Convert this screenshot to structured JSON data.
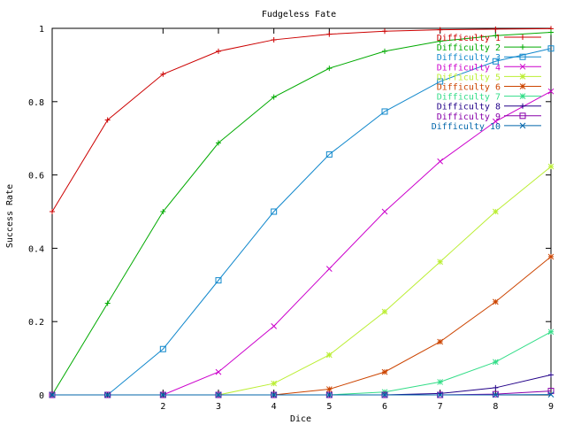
{
  "chart_data": {
    "type": "line",
    "title": "Fudgeless Fate",
    "xlabel": "Dice",
    "ylabel": "Success Rate",
    "xlim": [
      0,
      9
    ],
    "ylim": [
      0,
      1
    ],
    "x": [
      0,
      1,
      2,
      3,
      4,
      5,
      6,
      7,
      8,
      9
    ],
    "xticks": [
      2,
      3,
      4,
      5,
      6,
      7,
      8,
      9
    ],
    "xtick_labels": [
      "2",
      "3",
      "4",
      "5",
      "6",
      "7",
      "8",
      "9"
    ],
    "yticks": [
      0,
      0.2,
      0.4,
      0.6,
      0.8,
      1
    ],
    "ytick_labels": [
      "0",
      "0.2",
      "0.4",
      "0.6",
      "0.8",
      "1"
    ],
    "grid": false,
    "legend_position": "top-right",
    "series": [
      {
        "name": "Difficulty 1",
        "color": "#cc0000",
        "marker": "plus",
        "values": [
          0.5,
          0.75,
          0.875,
          0.9375,
          0.96875,
          0.984,
          0.992,
          0.996,
          0.998,
          0.999
        ]
      },
      {
        "name": "Difficulty 2",
        "color": "#00aa00",
        "marker": "plus",
        "values": [
          0,
          0.25,
          0.5,
          0.6875,
          0.8125,
          0.891,
          0.9375,
          0.965,
          0.98,
          0.989
        ]
      },
      {
        "name": "Difficulty 3",
        "color": "#1188cc",
        "marker": "square",
        "values": [
          0,
          0,
          0.125,
          0.3125,
          0.5,
          0.656,
          0.773,
          0.855,
          0.91,
          0.945
        ]
      },
      {
        "name": "Difficulty 4",
        "color": "#cc00cc",
        "marker": "cross",
        "values": [
          0,
          0,
          0,
          0.0625,
          0.1875,
          0.344,
          0.5,
          0.637,
          0.746,
          0.828
        ]
      },
      {
        "name": "Difficulty 5",
        "color": "#bbee33",
        "marker": "star",
        "values": [
          0,
          0,
          0,
          0,
          0.03125,
          0.109,
          0.227,
          0.363,
          0.5,
          0.623
        ]
      },
      {
        "name": "Difficulty 6",
        "color": "#cc4400",
        "marker": "star",
        "values": [
          0,
          0,
          0,
          0,
          0,
          0.0156,
          0.0625,
          0.145,
          0.254,
          0.377
        ]
      },
      {
        "name": "Difficulty 7",
        "color": "#33dd88",
        "marker": "star",
        "values": [
          0,
          0,
          0,
          0,
          0,
          0,
          0.0078,
          0.0352,
          0.0898,
          0.172
        ]
      },
      {
        "name": "Difficulty 8",
        "color": "#220088",
        "marker": "plus",
        "values": [
          0,
          0,
          0,
          0,
          0,
          0,
          0,
          0.0039,
          0.0195,
          0.0547
        ]
      },
      {
        "name": "Difficulty 9",
        "color": "#8800aa",
        "marker": "square",
        "values": [
          0,
          0,
          0,
          0,
          0,
          0,
          0,
          0,
          0.002,
          0.0107
        ]
      },
      {
        "name": "Difficulty 10",
        "color": "#0066aa",
        "marker": "cross",
        "values": [
          0,
          0,
          0,
          0,
          0,
          0,
          0,
          0,
          0,
          0.001
        ]
      }
    ]
  }
}
